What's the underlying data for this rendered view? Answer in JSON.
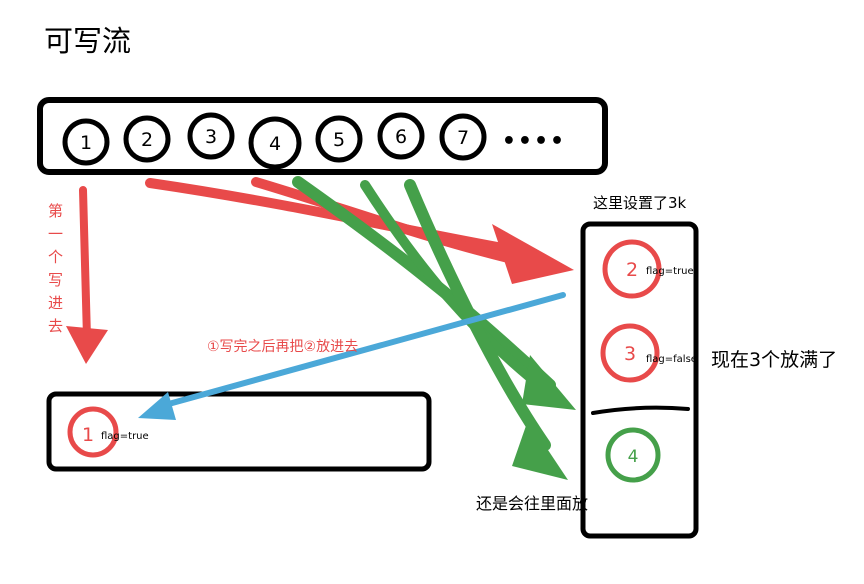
{
  "title": "可写流",
  "source": {
    "items": [
      "1",
      "2",
      "3",
      "4",
      "5",
      "6",
      "7"
    ],
    "ellipsis": "••••"
  },
  "first_write": {
    "chars": [
      "第",
      "一",
      "个",
      "写",
      "进",
      "去"
    ]
  },
  "writing": {
    "number": "1",
    "flag": "flag=true"
  },
  "buffer": {
    "label": "这里设置了3k",
    "items": [
      {
        "number": "2",
        "flag": "flag=true"
      },
      {
        "number": "3",
        "flag": "flag=false"
      },
      {
        "number": "4",
        "flag": ""
      }
    ]
  },
  "annotations": {
    "put_back": "①写完之后再把②放进去",
    "full": "现在3个放满了",
    "still_put": "还是会往里面放"
  },
  "colors": {
    "red": "#e84a4a",
    "green": "#45a04a",
    "blue": "#4ba8d8",
    "black": "#000000"
  }
}
